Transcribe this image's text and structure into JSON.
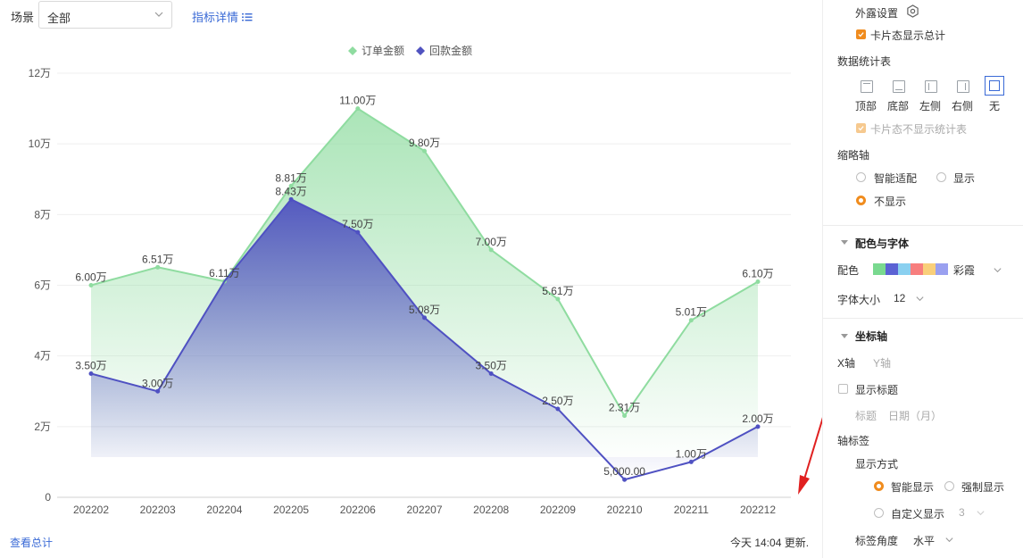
{
  "toolbar": {
    "scene_label": "场景",
    "scene_value": "全部",
    "metric_link": "指标详情"
  },
  "footer": {
    "total_link": "查看总计",
    "update_text": "今天 14:04 更新."
  },
  "chart_data": {
    "type": "area",
    "categories": [
      "202202",
      "202203",
      "202204",
      "202205",
      "202206",
      "202207",
      "202208",
      "202209",
      "202210",
      "202211",
      "202212"
    ],
    "series": [
      {
        "name": "订单金额",
        "color": "#8fdca0",
        "values": [
          60000,
          65100,
          61100,
          88100,
          110000,
          98000,
          70000,
          56100,
          23100,
          50100,
          61000
        ],
        "labels": [
          "6.00万",
          "6.51万",
          "6.11万",
          "8.81万",
          "11.00万",
          "9.80万",
          "7.00万",
          "5.61万",
          "2.31万",
          "5.01万",
          "6.10万"
        ]
      },
      {
        "name": "回款金额",
        "color": "#5053c0",
        "values": [
          35000,
          30000,
          null,
          84300,
          75000,
          50800,
          35000,
          25000,
          5000,
          10000,
          20000
        ],
        "labels": [
          "3.50万",
          "3.00万",
          "",
          "8.43万",
          "7.50万",
          "5.08万",
          "3.50万",
          "2.50万",
          "5,000.00",
          "1.00万",
          "2.00万"
        ]
      }
    ],
    "y_ticks": [
      "0",
      "2万",
      "4万",
      "6万",
      "8万",
      "10万",
      "12万"
    ],
    "ylim": [
      0,
      120000
    ],
    "legend": "top-center",
    "grid": true
  },
  "panel": {
    "expose_settings": "外露设置",
    "card_show_total": "卡片态显示总计",
    "data_table": "数据统计表",
    "positions": [
      "顶部",
      "底部",
      "左侧",
      "右侧",
      "无"
    ],
    "selected_position": "无",
    "card_hide_table": "卡片态不显示统计表",
    "thumb_axis": "缩略轴",
    "thumb_options": [
      "智能适配",
      "显示",
      "不显示"
    ],
    "thumb_selected": "不显示",
    "color_font_section": "配色与字体",
    "color_label": "配色",
    "palette_name": "彩霞",
    "palette": [
      "#79d98f",
      "#5b62d4",
      "#8ad0f0",
      "#f77e7e",
      "#f9cf7a",
      "#9aa0f0"
    ],
    "font_size_label": "字体大小",
    "font_size_value": "12",
    "axis_section": "坐标轴",
    "x_axis_tab": "X轴",
    "y_axis_tab": "Y轴",
    "show_title": "显示标题",
    "title_label": "标题",
    "title_value": "日期（月）",
    "axis_label": "轴标签",
    "display_mode": "显示方式",
    "mode_smart": "智能显示",
    "mode_force": "强制显示",
    "mode_custom": "自定义显示",
    "custom_value": "3",
    "label_angle": "标签角度",
    "label_angle_value": "水平"
  }
}
